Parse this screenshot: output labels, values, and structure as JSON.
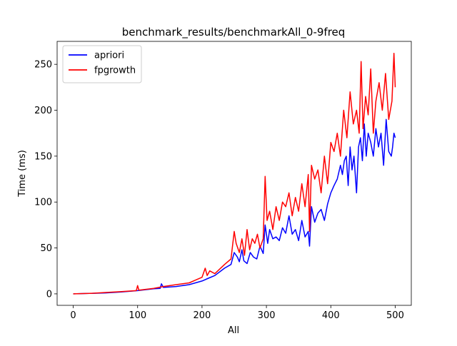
{
  "chart_data": {
    "type": "line",
    "title": "benchmark_results/benchmarkAll_0-9freq",
    "xlabel": "All",
    "ylabel": "Time (ms)",
    "xlim": [
      -25,
      525
    ],
    "ylim": [
      -12.5,
      275
    ],
    "xticks": [
      0,
      100,
      200,
      300,
      400,
      500
    ],
    "yticks": [
      0,
      50,
      100,
      150,
      200,
      250
    ],
    "grid": false,
    "legend_position": "upper-left",
    "series": [
      {
        "name": "apriori",
        "color": "#0000ff",
        "x": [
          0,
          25,
          50,
          75,
          100,
          125,
          135,
          137,
          140,
          160,
          180,
          200,
          210,
          220,
          235,
          245,
          250,
          255,
          258,
          262,
          265,
          270,
          275,
          280,
          285,
          290,
          295,
          298,
          302,
          305,
          310,
          315,
          320,
          325,
          330,
          335,
          340,
          345,
          350,
          355,
          360,
          365,
          367,
          370,
          375,
          380,
          385,
          390,
          395,
          400,
          405,
          410,
          415,
          418,
          421,
          424,
          427,
          430,
          433,
          436,
          440,
          443,
          446,
          449,
          452,
          455,
          458,
          462,
          466,
          470,
          474,
          478,
          482,
          486,
          490,
          494,
          496,
          498,
          500
        ],
        "y": [
          0,
          0.5,
          1,
          2,
          3.5,
          5.5,
          6,
          11,
          7,
          8,
          10,
          14,
          17,
          20,
          28,
          32,
          45,
          40,
          35,
          48,
          36,
          33,
          45,
          40,
          38,
          52,
          44,
          75,
          55,
          70,
          60,
          62,
          58,
          72,
          66,
          85,
          65,
          70,
          58,
          80,
          62,
          68,
          52,
          95,
          78,
          88,
          92,
          80,
          98,
          110,
          118,
          125,
          140,
          130,
          145,
          150,
          118,
          160,
          135,
          150,
          110,
          160,
          170,
          145,
          185,
          150,
          175,
          165,
          150,
          180,
          160,
          175,
          140,
          190,
          155,
          150,
          160,
          175,
          170
        ]
      },
      {
        "name": "fpgrowth",
        "color": "#ff0000",
        "x": [
          0,
          25,
          50,
          75,
          98,
          100,
          102,
          125,
          140,
          160,
          180,
          190,
          200,
          205,
          208,
          212,
          220,
          235,
          245,
          250,
          253,
          258,
          262,
          266,
          270,
          274,
          278,
          282,
          286,
          290,
          295,
          298,
          301,
          305,
          310,
          315,
          320,
          325,
          330,
          335,
          340,
          345,
          350,
          355,
          360,
          365,
          367,
          370,
          375,
          380,
          385,
          390,
          395,
          400,
          405,
          410,
          415,
          420,
          425,
          430,
          435,
          440,
          444,
          447,
          450,
          454,
          458,
          462,
          466,
          470,
          475,
          480,
          485,
          490,
          495,
          498,
          500
        ],
        "y": [
          0,
          0.5,
          1.5,
          2.5,
          3.5,
          9,
          4,
          6,
          8,
          10,
          12,
          15,
          18,
          28,
          20,
          25,
          22,
          32,
          38,
          68,
          55,
          45,
          60,
          42,
          70,
          48,
          60,
          55,
          65,
          50,
          60,
          128,
          80,
          90,
          70,
          95,
          80,
          100,
          95,
          110,
          85,
          105,
          90,
          120,
          95,
          130,
          68,
          140,
          125,
          135,
          110,
          150,
          120,
          165,
          155,
          175,
          150,
          200,
          170,
          220,
          185,
          200,
          175,
          253,
          180,
          215,
          195,
          245,
          175,
          210,
          230,
          200,
          240,
          190,
          210,
          262,
          225
        ]
      }
    ]
  }
}
